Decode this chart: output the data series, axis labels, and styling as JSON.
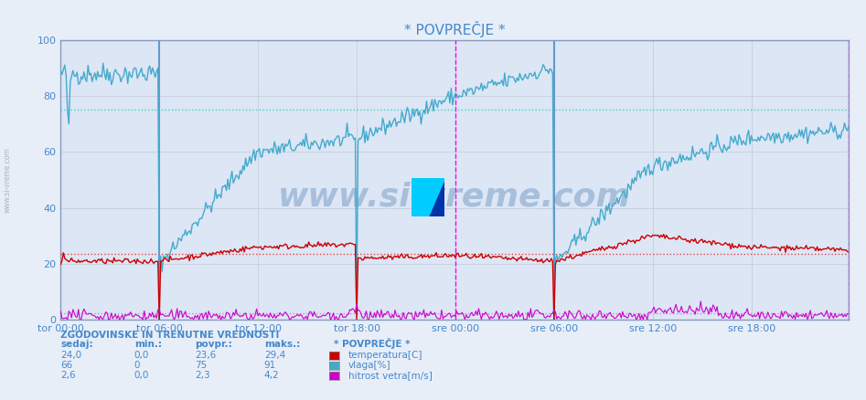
{
  "title": "* POVPREČJE *",
  "bg_color": "#e8eef8",
  "plot_bg_color": "#dce6f5",
  "grid_color": "#c0c8d8",
  "ylim": [
    0,
    100
  ],
  "yticks": [
    0,
    20,
    40,
    60,
    80,
    100
  ],
  "xlabel_color": "#4488cc",
  "ylabel_color": "#4488cc",
  "title_color": "#4488cc",
  "watermark": "www.si-vreme.com",
  "watermark_color": "#4477aa",
  "x_tick_labels": [
    "tor 00:00",
    "tor 06:00",
    "tor 12:00",
    "tor 18:00",
    "sre 00:00",
    "sre 06:00",
    "sre 12:00",
    "sre 18:00"
  ],
  "x_tick_positions": [
    0,
    72,
    144,
    216,
    288,
    360,
    432,
    504
  ],
  "total_points": 576,
  "temp_color": "#cc0000",
  "humidity_color": "#44aacc",
  "wind_color": "#cc00cc",
  "temp_avg": 23.6,
  "humidity_avg": 75,
  "wind_avg": 2.3,
  "temp_avg_line_color": "#dd4444",
  "humidity_avg_line_color": "#44cccc",
  "wind_avg_line_color": "#cc88cc",
  "footer_title_color": "#4488cc",
  "footer_label_color": "#4488cc",
  "legend_items": [
    {
      "label": "temperatura[C]",
      "color": "#cc0000"
    },
    {
      "label": "vlaga[%]",
      "color": "#44aacc"
    },
    {
      "label": "hitrost vetra[m/s]",
      "color": "#cc00cc"
    }
  ],
  "table_header": "ZGODOVINSKE IN TRENUTNE VREDNOSTI",
  "table_cols": [
    "sedaj:",
    "min.:",
    "povpr.:",
    "maks.:",
    "* POVPREČJE *"
  ],
  "table_rows": [
    [
      "24,0",
      "0,0",
      "23,6",
      "29,4"
    ],
    [
      "66",
      "0",
      "75",
      "91"
    ],
    [
      "2,6",
      "0,0",
      "2,3",
      "4,2"
    ]
  ]
}
